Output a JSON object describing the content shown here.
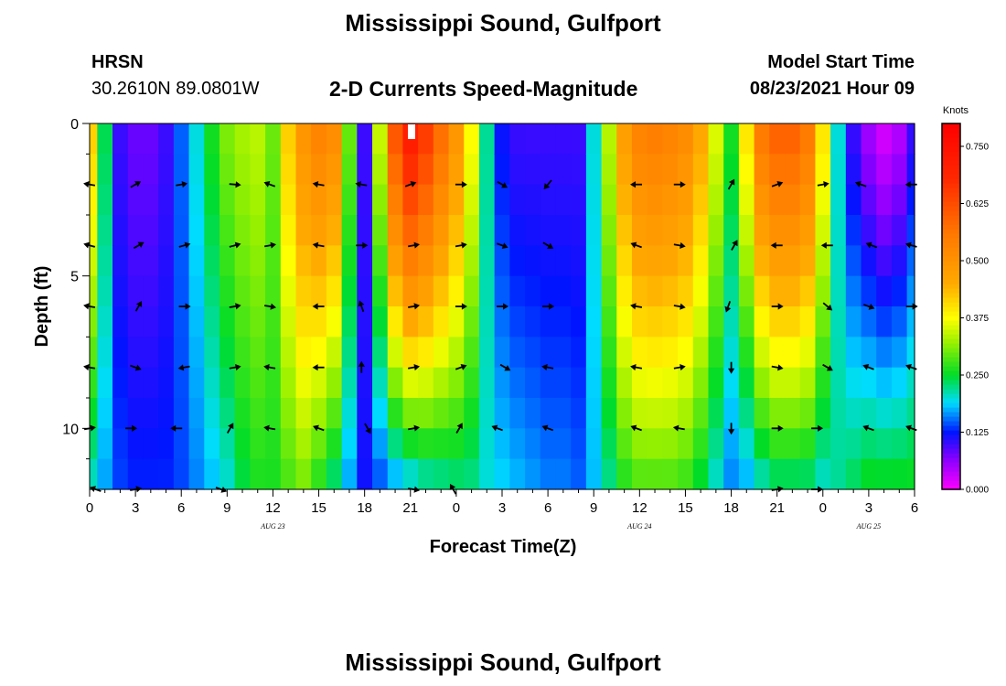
{
  "header": {
    "title": "Mississippi Sound, Gulfport",
    "station_id": "HRSN",
    "station_coords": "30.2610N  89.0801W",
    "plot_title": "2-D Currents Speed-Magnitude",
    "model_label": "Model Start Time",
    "model_time": "08/23/2021 Hour 09"
  },
  "footer": {
    "title": "Mississippi Sound, Gulfport"
  },
  "chart_data": {
    "type": "heatmap",
    "title": "2-D Currents Speed-Magnitude",
    "xlabel": "Forecast Time(Z)",
    "ylabel": "Depth (ft)",
    "x_tick_labels": [
      "0",
      "3",
      "6",
      "9",
      "12",
      "15",
      "18",
      "21",
      "0",
      "3",
      "6",
      "9",
      "12",
      "15",
      "18",
      "21",
      "0",
      "3",
      "6"
    ],
    "x_range_hours": [
      0,
      54
    ],
    "y_tick_labels": [
      "0",
      "5",
      "10"
    ],
    "y_range_ft": [
      0,
      12
    ],
    "y_inverted": true,
    "date_labels": [
      {
        "text": "AUG 23",
        "hour": 12
      },
      {
        "text": "AUG 24",
        "hour": 36
      },
      {
        "text": "AUG 25",
        "hour": 51
      }
    ],
    "colorbar": {
      "unit": "Knots",
      "range": [
        0,
        0.8
      ],
      "tick_values": [
        0.0,
        0.125,
        0.25,
        0.375,
        0.5,
        0.625,
        0.75
      ],
      "tick_labels": [
        "0.000",
        "0.125",
        "0.250",
        "0.375",
        "0.500",
        "0.625",
        "0.750"
      ],
      "colormap": "magenta-blue-cyan-green-yellow-orange-red"
    },
    "profile_hours": [
      0,
      1,
      2,
      3,
      4,
      5,
      6,
      7,
      8,
      9,
      10,
      11,
      12,
      13,
      14,
      15,
      16,
      17,
      18,
      19,
      20,
      21,
      22,
      23,
      24,
      25,
      26,
      27,
      28,
      29,
      30,
      31,
      32,
      33,
      34,
      35,
      36,
      37,
      38,
      39,
      40,
      41,
      42,
      43,
      44,
      45,
      46,
      47,
      48,
      49,
      50,
      51,
      52,
      53,
      54
    ],
    "surface_speed_knots": [
      0.42,
      0.24,
      0.1,
      0.08,
      0.08,
      0.1,
      0.15,
      0.2,
      0.26,
      0.31,
      0.33,
      0.34,
      0.3,
      0.42,
      0.5,
      0.54,
      0.52,
      0.3,
      0.1,
      0.35,
      0.62,
      0.72,
      0.66,
      0.58,
      0.5,
      0.38,
      0.22,
      0.12,
      0.1,
      0.1,
      0.1,
      0.1,
      0.1,
      0.2,
      0.34,
      0.48,
      0.54,
      0.55,
      0.54,
      0.52,
      0.46,
      0.36,
      0.26,
      0.4,
      0.56,
      0.6,
      0.6,
      0.56,
      0.4,
      0.2,
      0.1,
      0.05,
      0.02,
      0.04,
      0.1
    ],
    "bottom_speed_knots": [
      0.2,
      0.17,
      0.14,
      0.13,
      0.13,
      0.13,
      0.14,
      0.16,
      0.18,
      0.2,
      0.24,
      0.26,
      0.26,
      0.28,
      0.3,
      0.26,
      0.22,
      0.17,
      0.12,
      0.14,
      0.16,
      0.18,
      0.2,
      0.21,
      0.22,
      0.22,
      0.2,
      0.19,
      0.18,
      0.17,
      0.16,
      0.16,
      0.15,
      0.18,
      0.22,
      0.26,
      0.28,
      0.28,
      0.28,
      0.27,
      0.24,
      0.2,
      0.16,
      0.17,
      0.2,
      0.22,
      0.22,
      0.22,
      0.2,
      0.22,
      0.24,
      0.26,
      0.26,
      0.26,
      0.26
    ],
    "arrow_depths_ft": [
      0,
      2,
      4,
      6,
      8,
      10,
      12
    ],
    "arrows": [
      {
        "hour": 0,
        "depth": 2,
        "angle": 190
      },
      {
        "hour": 3,
        "depth": 2,
        "angle": 330
      },
      {
        "hour": 6,
        "depth": 2,
        "angle": 350
      },
      {
        "hour": 9.5,
        "depth": 2,
        "angle": 5
      },
      {
        "hour": 11.8,
        "depth": 2,
        "angle": 200
      },
      {
        "hour": 15,
        "depth": 2,
        "angle": 190
      },
      {
        "hour": 17.8,
        "depth": 2,
        "angle": 190
      },
      {
        "hour": 21,
        "depth": 2,
        "angle": 340
      },
      {
        "hour": 24.3,
        "depth": 2,
        "angle": 0
      },
      {
        "hour": 27,
        "depth": 2,
        "angle": 30
      },
      {
        "hour": 30,
        "depth": 2,
        "angle": 130
      },
      {
        "hour": 35.8,
        "depth": 2,
        "angle": 180
      },
      {
        "hour": 38.6,
        "depth": 2,
        "angle": 0
      },
      {
        "hour": 42,
        "depth": 2,
        "angle": 300
      },
      {
        "hour": 45,
        "depth": 2,
        "angle": 340
      },
      {
        "hour": 48,
        "depth": 2,
        "angle": 350
      },
      {
        "hour": 50.5,
        "depth": 2,
        "angle": 200
      },
      {
        "hour": 53.8,
        "depth": 2,
        "angle": 180
      },
      {
        "hour": 0,
        "depth": 4,
        "angle": 195
      },
      {
        "hour": 3.2,
        "depth": 4,
        "angle": 330
      },
      {
        "hour": 6.2,
        "depth": 4,
        "angle": 345
      },
      {
        "hour": 9.5,
        "depth": 4,
        "angle": 345
      },
      {
        "hour": 11.8,
        "depth": 4,
        "angle": 350
      },
      {
        "hour": 15,
        "depth": 4,
        "angle": 190
      },
      {
        "hour": 17.8,
        "depth": 4,
        "angle": 0
      },
      {
        "hour": 21.2,
        "depth": 4,
        "angle": 350
      },
      {
        "hour": 24.3,
        "depth": 4,
        "angle": 350
      },
      {
        "hour": 27,
        "depth": 4,
        "angle": 20
      },
      {
        "hour": 30,
        "depth": 4,
        "angle": 30
      },
      {
        "hour": 35.8,
        "depth": 4,
        "angle": 200
      },
      {
        "hour": 38.6,
        "depth": 4,
        "angle": 10
      },
      {
        "hour": 42.2,
        "depth": 4,
        "angle": 300
      },
      {
        "hour": 45,
        "depth": 4,
        "angle": 180
      },
      {
        "hour": 48.3,
        "depth": 4,
        "angle": 180
      },
      {
        "hour": 51.2,
        "depth": 4,
        "angle": 200
      },
      {
        "hour": 53.8,
        "depth": 4,
        "angle": 195
      },
      {
        "hour": 0,
        "depth": 6,
        "angle": 190
      },
      {
        "hour": 3.2,
        "depth": 6,
        "angle": 300
      },
      {
        "hour": 6.2,
        "depth": 6,
        "angle": 0
      },
      {
        "hour": 9.5,
        "depth": 6,
        "angle": 350
      },
      {
        "hour": 11.8,
        "depth": 6,
        "angle": 10
      },
      {
        "hour": 15,
        "depth": 6,
        "angle": 180
      },
      {
        "hour": 17.8,
        "depth": 6,
        "angle": 250
      },
      {
        "hour": 21.2,
        "depth": 6,
        "angle": 350
      },
      {
        "hour": 24.3,
        "depth": 6,
        "angle": 0
      },
      {
        "hour": 27,
        "depth": 6,
        "angle": 0
      },
      {
        "hour": 30,
        "depth": 6,
        "angle": 0
      },
      {
        "hour": 35.8,
        "depth": 6,
        "angle": 190
      },
      {
        "hour": 38.6,
        "depth": 6,
        "angle": 10
      },
      {
        "hour": 41.8,
        "depth": 6,
        "angle": 110
      },
      {
        "hour": 45,
        "depth": 6,
        "angle": 0
      },
      {
        "hour": 48.3,
        "depth": 6,
        "angle": 40
      },
      {
        "hour": 51,
        "depth": 6,
        "angle": 20
      },
      {
        "hour": 53.8,
        "depth": 6,
        "angle": 0
      },
      {
        "hour": 0,
        "depth": 8,
        "angle": 190
      },
      {
        "hour": 3,
        "depth": 8,
        "angle": 20
      },
      {
        "hour": 6.2,
        "depth": 8,
        "angle": 170
      },
      {
        "hour": 9.5,
        "depth": 8,
        "angle": 350
      },
      {
        "hour": 11.8,
        "depth": 8,
        "angle": 190
      },
      {
        "hour": 15,
        "depth": 8,
        "angle": 180
      },
      {
        "hour": 17.8,
        "depth": 8,
        "angle": 270
      },
      {
        "hour": 21.2,
        "depth": 8,
        "angle": 350
      },
      {
        "hour": 24.3,
        "depth": 8,
        "angle": 340
      },
      {
        "hour": 27.2,
        "depth": 8,
        "angle": 30
      },
      {
        "hour": 30,
        "depth": 8,
        "angle": 190
      },
      {
        "hour": 35.8,
        "depth": 8,
        "angle": 190
      },
      {
        "hour": 38.6,
        "depth": 8,
        "angle": 350
      },
      {
        "hour": 42,
        "depth": 8,
        "angle": 90
      },
      {
        "hour": 45,
        "depth": 8,
        "angle": 10
      },
      {
        "hour": 48.3,
        "depth": 8,
        "angle": 30
      },
      {
        "hour": 51,
        "depth": 8,
        "angle": 200
      },
      {
        "hour": 53.8,
        "depth": 8,
        "angle": 200
      },
      {
        "hour": 0,
        "depth": 10,
        "angle": 350
      },
      {
        "hour": 2.7,
        "depth": 10,
        "angle": 0
      },
      {
        "hour": 5.7,
        "depth": 10,
        "angle": 180
      },
      {
        "hour": 9.2,
        "depth": 10,
        "angle": 300
      },
      {
        "hour": 11.8,
        "depth": 10,
        "angle": 190
      },
      {
        "hour": 15,
        "depth": 10,
        "angle": 200
      },
      {
        "hour": 18.2,
        "depth": 10,
        "angle": 60
      },
      {
        "hour": 21.2,
        "depth": 10,
        "angle": 350
      },
      {
        "hour": 24.2,
        "depth": 10,
        "angle": 300
      },
      {
        "hour": 26.7,
        "depth": 10,
        "angle": 200
      },
      {
        "hour": 30,
        "depth": 10,
        "angle": 200
      },
      {
        "hour": 35.8,
        "depth": 10,
        "angle": 200
      },
      {
        "hour": 38.6,
        "depth": 10,
        "angle": 190
      },
      {
        "hour": 42,
        "depth": 10,
        "angle": 90
      },
      {
        "hour": 45,
        "depth": 10,
        "angle": 0
      },
      {
        "hour": 47.6,
        "depth": 10,
        "angle": 0
      },
      {
        "hour": 51,
        "depth": 10,
        "angle": 200
      },
      {
        "hour": 53.8,
        "depth": 10,
        "angle": 200
      },
      {
        "hour": 0.4,
        "depth": 12,
        "angle": 200
      },
      {
        "hour": 3,
        "depth": 12,
        "angle": 350
      },
      {
        "hour": 8.6,
        "depth": 12,
        "angle": 20
      },
      {
        "hour": 21.2,
        "depth": 12,
        "angle": 10
      },
      {
        "hour": 23.8,
        "depth": 12,
        "angle": 240
      },
      {
        "hour": 45,
        "depth": 12,
        "angle": 350
      },
      {
        "hour": 47.6,
        "depth": 12,
        "angle": 0
      }
    ]
  }
}
